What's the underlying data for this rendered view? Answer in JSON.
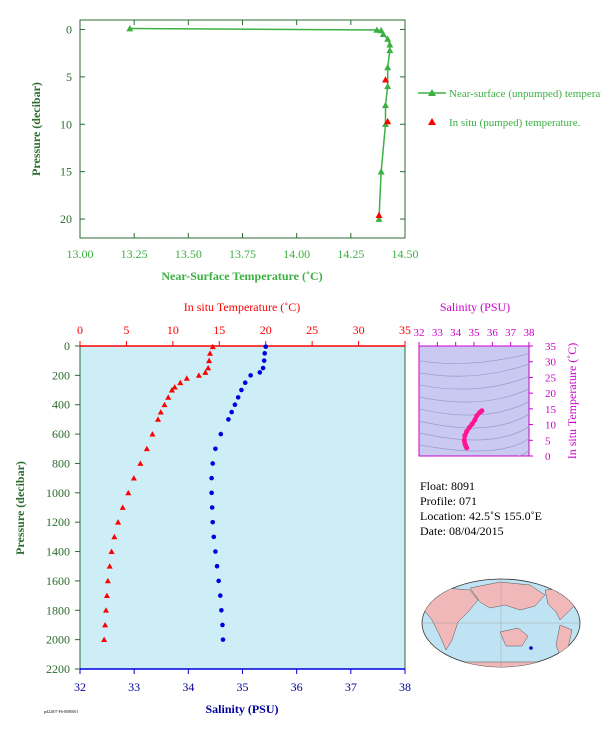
{
  "colors": {
    "green": "#3cb043",
    "green_dark": "#2b6b2e",
    "red": "#ff0000",
    "blue": "#0000dd",
    "magenta": "#cc00cc",
    "pink": "#ff1493",
    "navy": "#00009c",
    "panel_bg": "#cdeef7",
    "ts_bg": "#c9c9f2"
  },
  "chart_data": [
    {
      "type": "line",
      "xlabel": "Near-Surface Temperature (˚C)",
      "ylabel": "Pressure (decibar)",
      "xlim": [
        13.0,
        14.5
      ],
      "ylim": [
        22,
        -1
      ],
      "xticks": [
        "13.00",
        "13.25",
        "13.50",
        "13.75",
        "14.00",
        "14.25",
        "14.50"
      ],
      "yticks": [
        "0",
        "5",
        "10",
        "15",
        "20"
      ],
      "legend_placement": "right",
      "series": [
        {
          "name": "Near-surface (unpumped) temperature.",
          "marker": "triangle-line",
          "points": [
            [
              13.23,
              -0.1
            ],
            [
              14.37,
              0.05
            ],
            [
              14.39,
              0.1
            ],
            [
              14.4,
              0.5
            ],
            [
              14.42,
              1.0
            ],
            [
              14.43,
              1.6
            ],
            [
              14.43,
              2.2
            ],
            [
              14.42,
              4.0
            ],
            [
              14.42,
              6.0
            ],
            [
              14.41,
              8.0
            ],
            [
              14.41,
              10.0
            ],
            [
              14.39,
              15.0
            ],
            [
              14.38,
              20.0
            ]
          ]
        },
        {
          "name": "In situ (pumped) temperature.",
          "marker": "triangle",
          "points": [
            [
              14.41,
              5.3
            ],
            [
              14.42,
              9.7
            ],
            [
              14.38,
              19.6
            ]
          ]
        }
      ]
    },
    {
      "type": "scatter",
      "xlabel_top": "In situ Temperature (˚C)",
      "xlabel_bottom": "Salinity (PSU)",
      "ylabel": "Pressure (decibar)",
      "xlim_temperature": [
        0,
        35
      ],
      "xlim_salinity": [
        32,
        38
      ],
      "ylim": [
        2200,
        0
      ],
      "temperature_ticks": [
        "0",
        "5",
        "10",
        "15",
        "20",
        "25",
        "30",
        "35"
      ],
      "salinity_ticks": [
        "32",
        "33",
        "34",
        "35",
        "36",
        "37",
        "38"
      ],
      "pressure_ticks": [
        "0",
        "200",
        "400",
        "600",
        "800",
        "1000",
        "1200",
        "1400",
        "1600",
        "1800",
        "2000",
        "2200"
      ],
      "temperature": {
        "pressure": [
          5,
          50,
          100,
          150,
          180,
          200,
          220,
          250,
          280,
          300,
          350,
          400,
          450,
          500,
          600,
          700,
          800,
          900,
          1000,
          1100,
          1200,
          1300,
          1400,
          1500,
          1600,
          1700,
          1800,
          1900,
          2000
        ],
        "values": [
          14.3,
          14.0,
          13.9,
          13.8,
          13.5,
          12.8,
          11.5,
          10.8,
          10.2,
          9.9,
          9.5,
          9.1,
          8.7,
          8.4,
          7.8,
          7.2,
          6.5,
          5.8,
          5.2,
          4.6,
          4.1,
          3.7,
          3.4,
          3.2,
          3.0,
          2.9,
          2.8,
          2.7,
          2.6
        ]
      },
      "salinity": {
        "pressure": [
          5,
          50,
          100,
          150,
          180,
          200,
          250,
          300,
          350,
          400,
          450,
          500,
          600,
          700,
          800,
          900,
          1000,
          1100,
          1200,
          1300,
          1400,
          1500,
          1600,
          1700,
          1800,
          1900,
          2000
        ],
        "values": [
          35.43,
          35.41,
          35.4,
          35.38,
          35.32,
          35.15,
          35.05,
          34.98,
          34.92,
          34.86,
          34.8,
          34.74,
          34.6,
          34.5,
          34.45,
          34.43,
          34.43,
          34.44,
          34.45,
          34.47,
          34.5,
          34.53,
          34.56,
          34.59,
          34.61,
          34.63,
          34.64
        ]
      }
    },
    {
      "type": "scatter",
      "xlabel": "Salinity (PSU)",
      "ylabel": "In situ Temperature (˚C)",
      "xlim": [
        32,
        38
      ],
      "ylim": [
        0,
        35
      ],
      "xticks": [
        "32",
        "33",
        "34",
        "35",
        "36",
        "37",
        "38"
      ],
      "yticks": [
        "0",
        "5",
        "10",
        "15",
        "20",
        "25",
        "30",
        "35"
      ],
      "points": [
        [
          34.6,
          2.6
        ],
        [
          34.55,
          3.2
        ],
        [
          34.5,
          4.0
        ],
        [
          34.47,
          5.0
        ],
        [
          34.5,
          6.5
        ],
        [
          34.6,
          7.8
        ],
        [
          34.75,
          9.1
        ],
        [
          34.9,
          10.2
        ],
        [
          35.05,
          11.5
        ],
        [
          35.15,
          12.8
        ],
        [
          35.3,
          13.8
        ],
        [
          35.4,
          14.2
        ],
        [
          35.43,
          14.4
        ]
      ]
    }
  ],
  "float_info": {
    "float": "Float:  8091",
    "profile": "Profile:  071",
    "location": "Location:  42.5˚S  155.0˚E",
    "date": "Date:  08/04/2015"
  },
  "footer_code": "pd22f07-F6-8080001"
}
